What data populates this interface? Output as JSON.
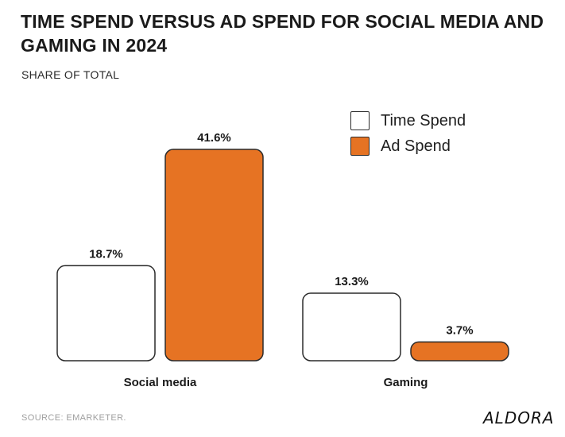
{
  "chart_data": {
    "type": "bar",
    "title": "TIME SPEND VERSUS AD SPEND FOR SOCIAL MEDIA AND GAMING IN 2024",
    "subtitle": "SHARE OF TOTAL",
    "categories": [
      "Social media",
      "Gaming"
    ],
    "series": [
      {
        "name": "Time Spend",
        "values": [
          18.7,
          13.3
        ],
        "labels": [
          "18.7%",
          "13.3%"
        ],
        "color": "#ffffff",
        "stroke": "#2b2b2b"
      },
      {
        "name": "Ad Spend",
        "values": [
          41.6,
          3.7
        ],
        "labels": [
          "41.6%",
          "3.7%"
        ],
        "color": "#e67323",
        "stroke": "#2b2b2b"
      }
    ],
    "unit": "%",
    "ylim": [
      0,
      41.6
    ],
    "grid": false,
    "legend_position": "top-right"
  },
  "source": "SOURCE: EMARKETER.",
  "brand": "ALDORA"
}
